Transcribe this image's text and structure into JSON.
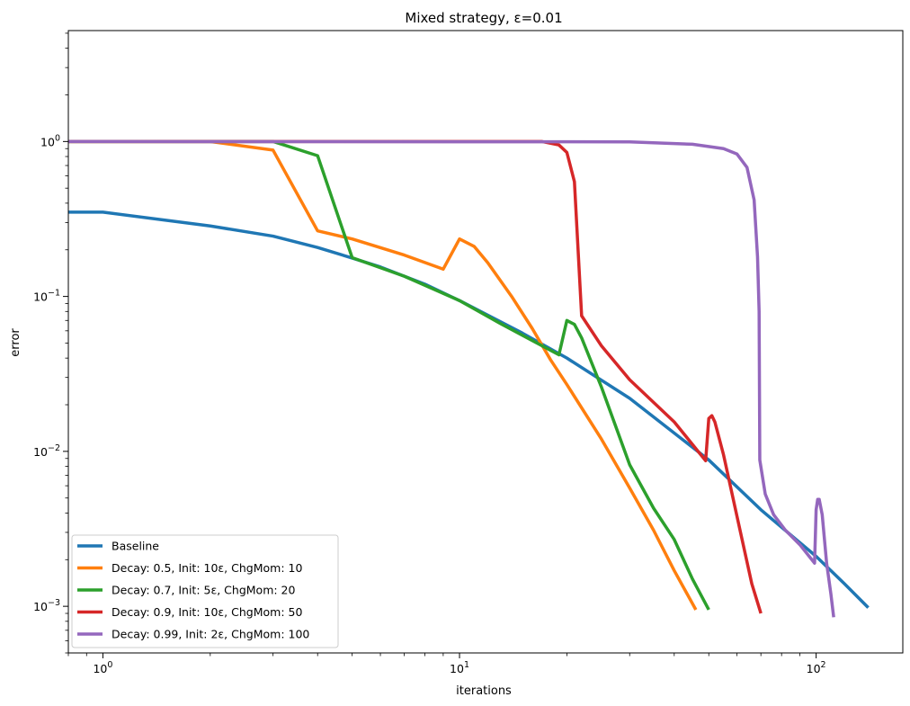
{
  "chart_data": {
    "type": "line",
    "title": "Mixed strategy, ε=0.01",
    "xlabel": "iterations",
    "ylabel": "error",
    "xscale": "log",
    "yscale": "log",
    "xlim": [
      0.8,
      175
    ],
    "ylim": [
      0.0005,
      5.2
    ],
    "grid": false,
    "legend_position": "lower-left",
    "x_ticks": [
      {
        "value": 1,
        "base": "10",
        "exp": "0"
      },
      {
        "value": 10,
        "base": "10",
        "exp": "1"
      },
      {
        "value": 100,
        "base": "10",
        "exp": "2"
      }
    ],
    "y_ticks": [
      {
        "value": 0.001,
        "base": "10",
        "exp": "−3"
      },
      {
        "value": 0.01,
        "base": "10",
        "exp": "−2"
      },
      {
        "value": 0.1,
        "base": "10",
        "exp": "−1"
      },
      {
        "value": 1,
        "base": "10",
        "exp": "0"
      }
    ],
    "series": [
      {
        "name": "Baseline",
        "color": "#1f77b4",
        "points": [
          [
            0.8,
            0.35
          ],
          [
            1,
            0.35
          ],
          [
            2,
            0.285
          ],
          [
            3,
            0.245
          ],
          [
            4,
            0.207
          ],
          [
            5,
            0.177
          ],
          [
            6,
            0.155
          ],
          [
            8,
            0.12
          ],
          [
            10,
            0.094
          ],
          [
            15,
            0.058
          ],
          [
            20,
            0.04
          ],
          [
            30,
            0.022
          ],
          [
            50,
            0.0088
          ],
          [
            70,
            0.0042
          ],
          [
            100,
            0.0021
          ],
          [
            120,
            0.0014
          ],
          [
            140,
            0.00098
          ]
        ]
      },
      {
        "name": "Decay: 0.5, Init: 10ε, ChgMom: 10",
        "color": "#ff7f0e",
        "points": [
          [
            0.8,
            1.0
          ],
          [
            2,
            1.0
          ],
          [
            3,
            0.88
          ],
          [
            4,
            0.265
          ],
          [
            5,
            0.235
          ],
          [
            7,
            0.185
          ],
          [
            9,
            0.15
          ],
          [
            10,
            0.235
          ],
          [
            11,
            0.21
          ],
          [
            12,
            0.165
          ],
          [
            14,
            0.1
          ],
          [
            16,
            0.062
          ],
          [
            18,
            0.039
          ],
          [
            20,
            0.027
          ],
          [
            25,
            0.012
          ],
          [
            30,
            0.0058
          ],
          [
            35,
            0.0031
          ],
          [
            40,
            0.0017
          ],
          [
            46,
            0.00095
          ]
        ]
      },
      {
        "name": "Decay: 0.7, Init: 5ε, ChgMom: 20",
        "color": "#2ca02c",
        "points": [
          [
            0.8,
            1.0
          ],
          [
            3,
            1.0
          ],
          [
            4,
            0.81
          ],
          [
            5,
            0.178
          ],
          [
            7,
            0.135
          ],
          [
            10,
            0.094
          ],
          [
            13,
            0.067
          ],
          [
            19,
            0.042
          ],
          [
            20,
            0.07
          ],
          [
            21,
            0.066
          ],
          [
            22,
            0.054
          ],
          [
            25,
            0.026
          ],
          [
            30,
            0.0082
          ],
          [
            35,
            0.0043
          ],
          [
            40,
            0.0027
          ],
          [
            45,
            0.0015
          ],
          [
            50,
            0.00095
          ]
        ]
      },
      {
        "name": "Decay: 0.9, Init: 10ε, ChgMom: 50",
        "color": "#d62728",
        "points": [
          [
            0.8,
            1.0
          ],
          [
            17,
            1.0
          ],
          [
            19,
            0.95
          ],
          [
            20,
            0.85
          ],
          [
            21,
            0.55
          ],
          [
            22,
            0.075
          ],
          [
            25,
            0.048
          ],
          [
            30,
            0.029
          ],
          [
            40,
            0.0155
          ],
          [
            49,
            0.0087
          ],
          [
            50,
            0.0163
          ],
          [
            51,
            0.017
          ],
          [
            52,
            0.0155
          ],
          [
            55,
            0.0095
          ],
          [
            60,
            0.0038
          ],
          [
            66,
            0.0014
          ],
          [
            70,
            0.0009
          ]
        ]
      },
      {
        "name": "Decay: 0.99, Init: 2ε, ChgMom: 100",
        "color": "#9467bd",
        "points": [
          [
            0.8,
            1.0
          ],
          [
            30,
            0.995
          ],
          [
            45,
            0.96
          ],
          [
            55,
            0.9
          ],
          [
            60,
            0.83
          ],
          [
            64,
            0.68
          ],
          [
            67,
            0.42
          ],
          [
            68.5,
            0.18
          ],
          [
            69.2,
            0.08
          ],
          [
            69.5,
            0.0088
          ],
          [
            72,
            0.0053
          ],
          [
            76,
            0.0039
          ],
          [
            82,
            0.0031
          ],
          [
            90,
            0.0025
          ],
          [
            99,
            0.0019
          ],
          [
            100,
            0.0042
          ],
          [
            101,
            0.0049
          ],
          [
            102,
            0.0049
          ],
          [
            104,
            0.0039
          ],
          [
            107,
            0.0019
          ],
          [
            110,
            0.0012
          ],
          [
            112,
            0.00085
          ]
        ]
      }
    ]
  }
}
